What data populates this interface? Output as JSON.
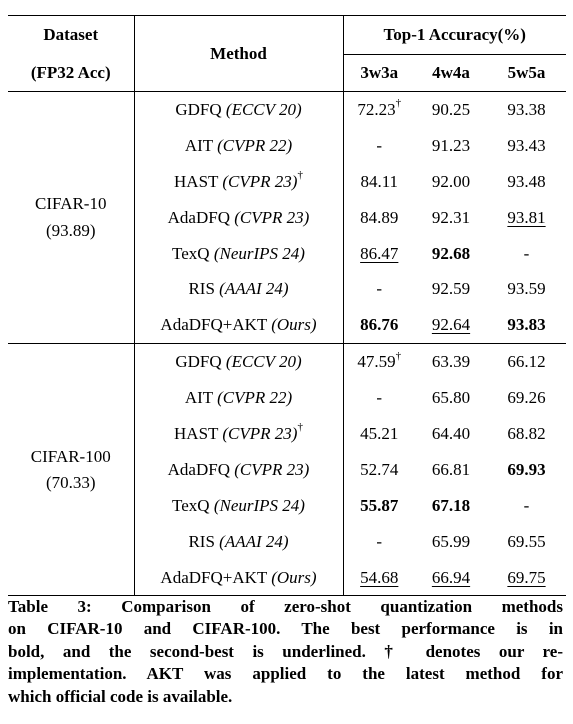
{
  "header": {
    "dataset_line1": "Dataset",
    "dataset_line2": "(FP32 Acc)",
    "method": "Method",
    "accuracy": "Top-1 Accuracy(%)",
    "cols": [
      "3w3a",
      "4w4a",
      "5w5a"
    ]
  },
  "groups": [
    {
      "dataset": "CIFAR-10",
      "fp32": "(93.89)",
      "rows": [
        {
          "name": "GDFQ",
          "venue": "(ECCV 20)",
          "dagger": "",
          "cells": [
            {
              "v": "72.23",
              "dagger": "†",
              "style": ""
            },
            {
              "v": "90.25",
              "dagger": "",
              "style": ""
            },
            {
              "v": "93.38",
              "dagger": "",
              "style": ""
            }
          ]
        },
        {
          "name": "AIT",
          "venue": "(CVPR 22)",
          "dagger": "",
          "cells": [
            {
              "v": "-",
              "dagger": "",
              "style": ""
            },
            {
              "v": "91.23",
              "dagger": "",
              "style": ""
            },
            {
              "v": "93.43",
              "dagger": "",
              "style": ""
            }
          ]
        },
        {
          "name": "HAST",
          "venue": "(CVPR 23)",
          "dagger": "†",
          "cells": [
            {
              "v": "84.11",
              "dagger": "",
              "style": ""
            },
            {
              "v": "92.00",
              "dagger": "",
              "style": ""
            },
            {
              "v": "93.48",
              "dagger": "",
              "style": ""
            }
          ]
        },
        {
          "name": "AdaDFQ",
          "venue": "(CVPR 23)",
          "dagger": "",
          "cells": [
            {
              "v": "84.89",
              "dagger": "",
              "style": ""
            },
            {
              "v": "92.31",
              "dagger": "",
              "style": ""
            },
            {
              "v": "93.81",
              "dagger": "",
              "style": "u"
            }
          ]
        },
        {
          "name": "TexQ",
          "venue": "(NeurIPS 24)",
          "dagger": "",
          "cells": [
            {
              "v": "86.47",
              "dagger": "",
              "style": "u"
            },
            {
              "v": "92.68",
              "dagger": "",
              "style": "b"
            },
            {
              "v": "-",
              "dagger": "",
              "style": ""
            }
          ]
        },
        {
          "name": "RIS",
          "venue": "(AAAI 24)",
          "dagger": "",
          "cells": [
            {
              "v": "-",
              "dagger": "",
              "style": ""
            },
            {
              "v": "92.59",
              "dagger": "",
              "style": ""
            },
            {
              "v": "93.59",
              "dagger": "",
              "style": ""
            }
          ]
        },
        {
          "name": "AdaDFQ+AKT",
          "venue": "(Ours)",
          "dagger": "",
          "cells": [
            {
              "v": "86.76",
              "dagger": "",
              "style": "b"
            },
            {
              "v": "92.64",
              "dagger": "",
              "style": "u"
            },
            {
              "v": "93.83",
              "dagger": "",
              "style": "b"
            }
          ]
        }
      ]
    },
    {
      "dataset": "CIFAR-100",
      "fp32": "(70.33)",
      "rows": [
        {
          "name": "GDFQ",
          "venue": "(ECCV 20)",
          "dagger": "",
          "cells": [
            {
              "v": "47.59",
              "dagger": "†",
              "style": ""
            },
            {
              "v": "63.39",
              "dagger": "",
              "style": ""
            },
            {
              "v": "66.12",
              "dagger": "",
              "style": ""
            }
          ]
        },
        {
          "name": "AIT",
          "venue": "(CVPR 22)",
          "dagger": "",
          "cells": [
            {
              "v": "-",
              "dagger": "",
              "style": ""
            },
            {
              "v": "65.80",
              "dagger": "",
              "style": ""
            },
            {
              "v": "69.26",
              "dagger": "",
              "style": ""
            }
          ]
        },
        {
          "name": "HAST",
          "venue": "(CVPR 23)",
          "dagger": "†",
          "cells": [
            {
              "v": "45.21",
              "dagger": "",
              "style": ""
            },
            {
              "v": "64.40",
              "dagger": "",
              "style": ""
            },
            {
              "v": "68.82",
              "dagger": "",
              "style": ""
            }
          ]
        },
        {
          "name": "AdaDFQ",
          "venue": "(CVPR 23)",
          "dagger": "",
          "cells": [
            {
              "v": "52.74",
              "dagger": "",
              "style": ""
            },
            {
              "v": "66.81",
              "dagger": "",
              "style": ""
            },
            {
              "v": "69.93",
              "dagger": "",
              "style": "b"
            }
          ]
        },
        {
          "name": "TexQ",
          "venue": "(NeurIPS 24)",
          "dagger": "",
          "cells": [
            {
              "v": "55.87",
              "dagger": "",
              "style": "b"
            },
            {
              "v": "67.18",
              "dagger": "",
              "style": "b"
            },
            {
              "v": "-",
              "dagger": "",
              "style": ""
            }
          ]
        },
        {
          "name": "RIS",
          "venue": "(AAAI 24)",
          "dagger": "",
          "cells": [
            {
              "v": "-",
              "dagger": "",
              "style": ""
            },
            {
              "v": "65.99",
              "dagger": "",
              "style": ""
            },
            {
              "v": "69.55",
              "dagger": "",
              "style": ""
            }
          ]
        },
        {
          "name": "AdaDFQ+AKT",
          "venue": "(Ours)",
          "dagger": "",
          "cells": [
            {
              "v": "54.68",
              "dagger": "",
              "style": "u"
            },
            {
              "v": "66.94",
              "dagger": "",
              "style": "u"
            },
            {
              "v": "69.75",
              "dagger": "",
              "style": "u"
            }
          ]
        }
      ]
    }
  ],
  "caption": {
    "lines": [
      "Table 3: Comparison of zero-shot quantization methods",
      "on CIFAR-10 and CIFAR-100. The best performance is in",
      "bold, and the second-best is underlined. † denotes our re-",
      "implementation. AKT was applied to the latest method for",
      "which official code is available."
    ]
  }
}
